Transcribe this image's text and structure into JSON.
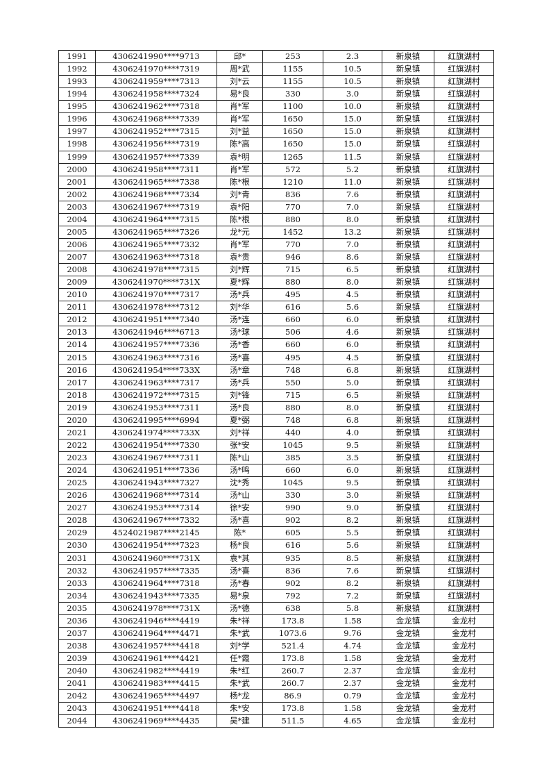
{
  "table": {
    "rows": [
      [
        "1991",
        "4306241990****9713",
        "邱*",
        "253",
        "2.3",
        "新泉镇",
        "红旗湖村"
      ],
      [
        "1992",
        "4306241970****7319",
        "周*武",
        "1155",
        "10.5",
        "新泉镇",
        "红旗湖村"
      ],
      [
        "1993",
        "4306241959****7313",
        "刘*云",
        "1155",
        "10.5",
        "新泉镇",
        "红旗湖村"
      ],
      [
        "1994",
        "4306241958****7324",
        "易*良",
        "330",
        "3.0",
        "新泉镇",
        "红旗湖村"
      ],
      [
        "1995",
        "4306241962****7318",
        "肖*军",
        "1100",
        "10.0",
        "新泉镇",
        "红旗湖村"
      ],
      [
        "1996",
        "4306241968****7339",
        "肖*军",
        "1650",
        "15.0",
        "新泉镇",
        "红旗湖村"
      ],
      [
        "1997",
        "4306241952****7315",
        "刘*益",
        "1650",
        "15.0",
        "新泉镇",
        "红旗湖村"
      ],
      [
        "1998",
        "4306241956****7319",
        "陈*高",
        "1650",
        "15.0",
        "新泉镇",
        "红旗湖村"
      ],
      [
        "1999",
        "4306241957****7339",
        "袁*明",
        "1265",
        "11.5",
        "新泉镇",
        "红旗湖村"
      ],
      [
        "2000",
        "4306241958****7311",
        "肖*军",
        "572",
        "5.2",
        "新泉镇",
        "红旗湖村"
      ],
      [
        "2001",
        "4306241965****7338",
        "陈*根",
        "1210",
        "11.0",
        "新泉镇",
        "红旗湖村"
      ],
      [
        "2002",
        "4306241968****7334",
        "刘*青",
        "836",
        "7.6",
        "新泉镇",
        "红旗湖村"
      ],
      [
        "2003",
        "4306241967****7319",
        "袁*阳",
        "770",
        "7.0",
        "新泉镇",
        "红旗湖村"
      ],
      [
        "2004",
        "4306241964****7315",
        "陈*根",
        "880",
        "8.0",
        "新泉镇",
        "红旗湖村"
      ],
      [
        "2005",
        "4306241965****7326",
        "龙*元",
        "1452",
        "13.2",
        "新泉镇",
        "红旗湖村"
      ],
      [
        "2006",
        "4306241965****7332",
        "肖*军",
        "770",
        "7.0",
        "新泉镇",
        "红旗湖村"
      ],
      [
        "2007",
        "4306241963****7318",
        "袁*贵",
        "946",
        "8.6",
        "新泉镇",
        "红旗湖村"
      ],
      [
        "2008",
        "4306241978****7315",
        "刘*辉",
        "715",
        "6.5",
        "新泉镇",
        "红旗湖村"
      ],
      [
        "2009",
        "4306241970****731X",
        "夏*辉",
        "880",
        "8.0",
        "新泉镇",
        "红旗湖村"
      ],
      [
        "2010",
        "4306241970****7317",
        "汤*兵",
        "495",
        "4.5",
        "新泉镇",
        "红旗湖村"
      ],
      [
        "2011",
        "4306241978****7312",
        "刘*华",
        "616",
        "5.6",
        "新泉镇",
        "红旗湖村"
      ],
      [
        "2012",
        "4306241951****7340",
        "汤*连",
        "660",
        "6.0",
        "新泉镇",
        "红旗湖村"
      ],
      [
        "2013",
        "4306241946****6713",
        "汤*球",
        "506",
        "4.6",
        "新泉镇",
        "红旗湖村"
      ],
      [
        "2014",
        "4306241957****7336",
        "汤*香",
        "660",
        "6.0",
        "新泉镇",
        "红旗湖村"
      ],
      [
        "2015",
        "4306241963****7316",
        "汤*喜",
        "495",
        "4.5",
        "新泉镇",
        "红旗湖村"
      ],
      [
        "2016",
        "4306241954****733X",
        "汤*章",
        "748",
        "6.8",
        "新泉镇",
        "红旗湖村"
      ],
      [
        "2017",
        "4306241963****7317",
        "汤*兵",
        "550",
        "5.0",
        "新泉镇",
        "红旗湖村"
      ],
      [
        "2018",
        "4306241972****7315",
        "刘*锋",
        "715",
        "6.5",
        "新泉镇",
        "红旗湖村"
      ],
      [
        "2019",
        "4306241953****7311",
        "汤*良",
        "880",
        "8.0",
        "新泉镇",
        "红旗湖村"
      ],
      [
        "2020",
        "4306241995****6994",
        "夏*弼",
        "748",
        "6.8",
        "新泉镇",
        "红旗湖村"
      ],
      [
        "2021",
        "4306241974****733X",
        "刘*祥",
        "440",
        "4.0",
        "新泉镇",
        "红旗湖村"
      ],
      [
        "2022",
        "4306241954****7330",
        "张*安",
        "1045",
        "9.5",
        "新泉镇",
        "红旗湖村"
      ],
      [
        "2023",
        "4306241967****7311",
        "陈*山",
        "385",
        "3.5",
        "新泉镇",
        "红旗湖村"
      ],
      [
        "2024",
        "4306241951****7336",
        "汤*鸣",
        "660",
        "6.0",
        "新泉镇",
        "红旗湖村"
      ],
      [
        "2025",
        "4306241943****7327",
        "沈*秀",
        "1045",
        "9.5",
        "新泉镇",
        "红旗湖村"
      ],
      [
        "2026",
        "4306241968****7314",
        "汤*山",
        "330",
        "3.0",
        "新泉镇",
        "红旗湖村"
      ],
      [
        "2027",
        "4306241953****7314",
        "徐*安",
        "990",
        "9.0",
        "新泉镇",
        "红旗湖村"
      ],
      [
        "2028",
        "4306241967****7332",
        "汤*喜",
        "902",
        "8.2",
        "新泉镇",
        "红旗湖村"
      ],
      [
        "2029",
        "4524021987****2145",
        "陈*",
        "605",
        "5.5",
        "新泉镇",
        "红旗湖村"
      ],
      [
        "2030",
        "4306241954****7323",
        "杨*良",
        "616",
        "5.6",
        "新泉镇",
        "红旗湖村"
      ],
      [
        "2031",
        "4306241960****731X",
        "袁*其",
        "935",
        "8.5",
        "新泉镇",
        "红旗湖村"
      ],
      [
        "2032",
        "4306241957****7335",
        "汤*喜",
        "836",
        "7.6",
        "新泉镇",
        "红旗湖村"
      ],
      [
        "2033",
        "4306241964****7318",
        "汤*春",
        "902",
        "8.2",
        "新泉镇",
        "红旗湖村"
      ],
      [
        "2034",
        "4306241943****7335",
        "易*泉",
        "792",
        "7.2",
        "新泉镇",
        "红旗湖村"
      ],
      [
        "2035",
        "4306241978****731X",
        "汤*德",
        "638",
        "5.8",
        "新泉镇",
        "红旗湖村"
      ],
      [
        "2036",
        "4306241946****4419",
        "朱*祥",
        "173.8",
        "1.58",
        "金龙镇",
        "金龙村"
      ],
      [
        "2037",
        "4306241964****4471",
        "朱*武",
        "1073.6",
        "9.76",
        "金龙镇",
        "金龙村"
      ],
      [
        "2038",
        "4306241957****4418",
        "刘*学",
        "521.4",
        "4.74",
        "金龙镇",
        "金龙村"
      ],
      [
        "2039",
        "4306241961****4421",
        "任*霞",
        "173.8",
        "1.58",
        "金龙镇",
        "金龙村"
      ],
      [
        "2040",
        "4306241982****4419",
        "朱*红",
        "260.7",
        "2.37",
        "金龙镇",
        "金龙村"
      ],
      [
        "2041",
        "4306241983****4415",
        "朱*武",
        "260.7",
        "2.37",
        "金龙镇",
        "金龙村"
      ],
      [
        "2042",
        "4306241965****4497",
        "杨*龙",
        "86.9",
        "0.79",
        "金龙镇",
        "金龙村"
      ],
      [
        "2043",
        "4306241951****4418",
        "朱*安",
        "173.8",
        "1.58",
        "金龙镇",
        "金龙村"
      ],
      [
        "2044",
        "4306241969****4435",
        "吴*建",
        "511.5",
        "4.65",
        "金龙镇",
        "金龙村"
      ]
    ]
  }
}
